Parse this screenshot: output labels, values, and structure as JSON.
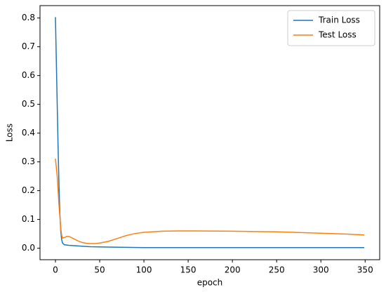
{
  "chart_data": {
    "type": "line",
    "xlabel": "epoch",
    "ylabel": "Loss",
    "xlim": [
      -17.45,
      366.45
    ],
    "ylim": [
      -0.04,
      0.843
    ],
    "xticks": [
      0,
      50,
      100,
      150,
      200,
      250,
      300,
      350
    ],
    "yticks": [
      {
        "value": 0,
        "label": "0.0"
      },
      0.1,
      0.2,
      0.3,
      0.4,
      0.5,
      0.6,
      0.7,
      0.8
    ],
    "legend": "upper right",
    "series": [
      {
        "name": "Train Loss",
        "color": "#1f77b4",
        "x": [
          0,
          1,
          2,
          3,
          4,
          5,
          6,
          7,
          8,
          10,
          15,
          20,
          30,
          40,
          60,
          100,
          150,
          200,
          250,
          300,
          349
        ],
        "values": [
          0.803,
          0.65,
          0.5,
          0.35,
          0.22,
          0.12,
          0.06,
          0.03,
          0.018,
          0.012,
          0.01,
          0.009,
          0.007,
          0.005,
          0.004,
          0.002,
          0.002,
          0.002,
          0.002,
          0.002,
          0.002
        ]
      },
      {
        "name": "Test Loss",
        "color": "#ff7f0e",
        "x": [
          0,
          2,
          4,
          6,
          7,
          8,
          10,
          13,
          16,
          20,
          25,
          30,
          35,
          40,
          45,
          50,
          60,
          70,
          80,
          90,
          100,
          120,
          140,
          160,
          200,
          250,
          300,
          330,
          349
        ],
        "values": [
          0.311,
          0.25,
          0.15,
          0.07,
          0.045,
          0.035,
          0.037,
          0.041,
          0.04,
          0.034,
          0.026,
          0.02,
          0.017,
          0.016,
          0.016,
          0.018,
          0.024,
          0.034,
          0.044,
          0.051,
          0.055,
          0.059,
          0.06,
          0.06,
          0.059,
          0.057,
          0.052,
          0.049,
          0.046
        ]
      }
    ]
  }
}
